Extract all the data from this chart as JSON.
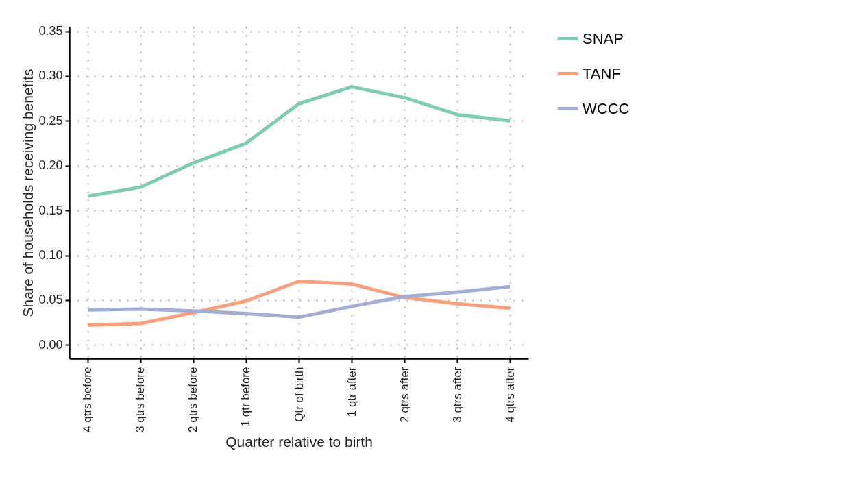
{
  "chart_data": {
    "type": "line",
    "xlabel": "Quarter relative to birth",
    "ylabel": "Share of households receiving benefits",
    "categories": [
      "4 qtrs before",
      "3 qtrs before",
      "2 qtrs before",
      "1 qtr before",
      "Qtr of birth",
      "1 qtr after",
      "2 qtrs after",
      "3 qtrs after",
      "4 qtrs after"
    ],
    "series": [
      {
        "name": "SNAP",
        "color": "#7fcdb0",
        "values": [
          0.166,
          0.176,
          0.203,
          0.225,
          0.269,
          0.288,
          0.276,
          0.257,
          0.25
        ]
      },
      {
        "name": "TANF",
        "color": "#f9a07f",
        "values": [
          0.022,
          0.024,
          0.036,
          0.049,
          0.071,
          0.068,
          0.053,
          0.046,
          0.041
        ]
      },
      {
        "name": "WCCC",
        "color": "#a2aed4",
        "values": [
          0.039,
          0.04,
          0.038,
          0.035,
          0.031,
          0.043,
          0.054,
          0.059,
          0.065
        ]
      }
    ],
    "ylim": [
      -0.015,
      0.355
    ],
    "yticks": [
      {
        "value": 0,
        "label": "0.00"
      },
      {
        "value": 0.05,
        "label": "0.05"
      },
      {
        "value": 0.1,
        "label": "0.10"
      },
      {
        "value": 0.15,
        "label": "0.15"
      },
      {
        "value": 0.2,
        "label": "0.20"
      },
      {
        "value": 0.25,
        "label": "0.25"
      },
      {
        "value": 0.3,
        "label": "0.30"
      },
      {
        "value": 0.35,
        "label": "0.35"
      }
    ],
    "grid": true,
    "legend": "right",
    "line_style": "solid",
    "marker": "none"
  }
}
